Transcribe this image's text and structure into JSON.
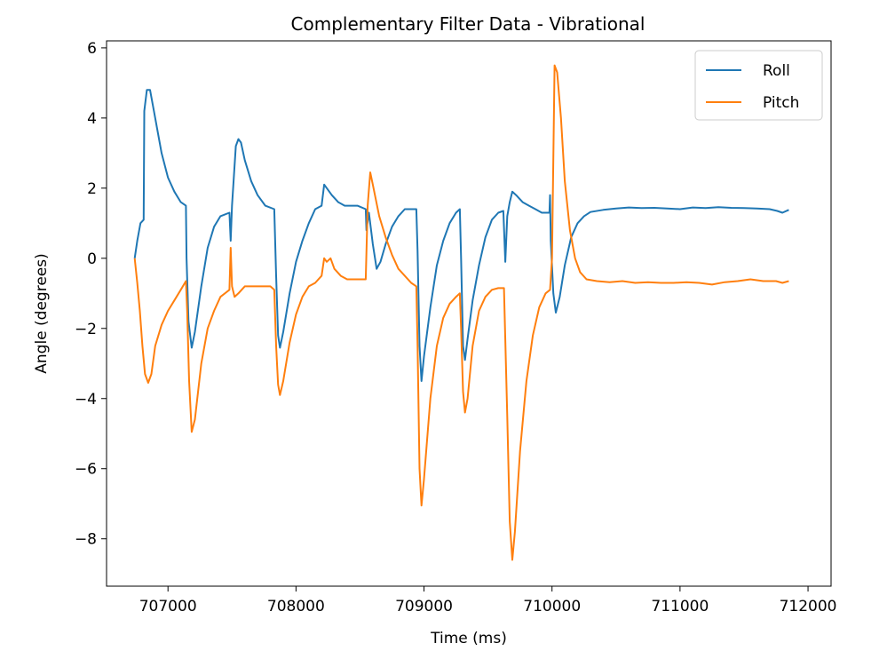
{
  "chart_data": {
    "type": "line",
    "title": "Complementary Filter Data - Vibrational",
    "xlabel": "Time (ms)",
    "ylabel": "Angle (degrees)",
    "xlim": [
      706520,
      712180
    ],
    "ylim": [
      -9.35,
      6.2
    ],
    "x_ticks": [
      707000,
      708000,
      709000,
      710000,
      711000,
      712000
    ],
    "x_tick_labels": [
      "707000",
      "708000",
      "709000",
      "710000",
      "711000",
      "712000"
    ],
    "y_ticks": [
      6,
      4,
      2,
      0,
      -2,
      -4,
      -6,
      -8
    ],
    "y_tick_labels": [
      "6",
      "4",
      "2",
      "0",
      "−2",
      "−4",
      "−6",
      "−8"
    ],
    "grid": false,
    "legend": "top-right",
    "series": [
      {
        "name": "Roll",
        "color": "#1f77b4",
        "points": [
          [
            706740,
            0.0
          ],
          [
            706760,
            0.5
          ],
          [
            706785,
            1.0
          ],
          [
            706810,
            1.1
          ],
          [
            706815,
            4.2
          ],
          [
            706835,
            4.8
          ],
          [
            706860,
            4.8
          ],
          [
            706900,
            4.0
          ],
          [
            706950,
            3.0
          ],
          [
            707000,
            2.3
          ],
          [
            707050,
            1.9
          ],
          [
            707100,
            1.6
          ],
          [
            707140,
            1.5
          ],
          [
            707145,
            0.0
          ],
          [
            707160,
            -1.8
          ],
          [
            707185,
            -2.55
          ],
          [
            707210,
            -2.1
          ],
          [
            707260,
            -0.8
          ],
          [
            707310,
            0.3
          ],
          [
            707360,
            0.9
          ],
          [
            707410,
            1.2
          ],
          [
            707480,
            1.3
          ],
          [
            707490,
            0.5
          ],
          [
            707500,
            1.5
          ],
          [
            707530,
            3.2
          ],
          [
            707550,
            3.4
          ],
          [
            707570,
            3.3
          ],
          [
            707600,
            2.8
          ],
          [
            707650,
            2.2
          ],
          [
            707700,
            1.8
          ],
          [
            707760,
            1.5
          ],
          [
            707830,
            1.4
          ],
          [
            707845,
            -0.5
          ],
          [
            707860,
            -2.2
          ],
          [
            707875,
            -2.55
          ],
          [
            707900,
            -2.1
          ],
          [
            707950,
            -1.0
          ],
          [
            708000,
            -0.1
          ],
          [
            708050,
            0.5
          ],
          [
            708100,
            1.0
          ],
          [
            708150,
            1.4
          ],
          [
            708200,
            1.5
          ],
          [
            708220,
            2.1
          ],
          [
            708240,
            2.0
          ],
          [
            708280,
            1.8
          ],
          [
            708330,
            1.6
          ],
          [
            708380,
            1.5
          ],
          [
            708430,
            1.5
          ],
          [
            708480,
            1.5
          ],
          [
            708545,
            1.4
          ],
          [
            708550,
            0.8
          ],
          [
            708570,
            1.3
          ],
          [
            708600,
            0.4
          ],
          [
            708630,
            -0.3
          ],
          [
            708660,
            -0.1
          ],
          [
            708700,
            0.4
          ],
          [
            708750,
            0.9
          ],
          [
            708800,
            1.2
          ],
          [
            708850,
            1.4
          ],
          [
            708900,
            1.4
          ],
          [
            708940,
            1.4
          ],
          [
            708950,
            0.2
          ],
          [
            708965,
            -2.5
          ],
          [
            708980,
            -3.5
          ],
          [
            709000,
            -2.8
          ],
          [
            709050,
            -1.4
          ],
          [
            709100,
            -0.2
          ],
          [
            709150,
            0.5
          ],
          [
            709200,
            1.0
          ],
          [
            709250,
            1.3
          ],
          [
            709280,
            1.4
          ],
          [
            709290,
            0.0
          ],
          [
            709305,
            -2.5
          ],
          [
            709320,
            -2.9
          ],
          [
            709340,
            -2.3
          ],
          [
            709380,
            -1.2
          ],
          [
            709430,
            -0.2
          ],
          [
            709480,
            0.6
          ],
          [
            709530,
            1.1
          ],
          [
            709580,
            1.3
          ],
          [
            709620,
            1.35
          ],
          [
            709635,
            -0.1
          ],
          [
            709650,
            1.2
          ],
          [
            709670,
            1.6
          ],
          [
            709690,
            1.9
          ],
          [
            709720,
            1.8
          ],
          [
            709770,
            1.6
          ],
          [
            709820,
            1.5
          ],
          [
            709870,
            1.4
          ],
          [
            709920,
            1.3
          ],
          [
            709980,
            1.3
          ],
          [
            709985,
            1.8
          ],
          [
            709990,
            0.5
          ],
          [
            710010,
            -1.0
          ],
          [
            710030,
            -1.55
          ],
          [
            710060,
            -1.1
          ],
          [
            710100,
            -0.2
          ],
          [
            710150,
            0.6
          ],
          [
            710200,
            1.0
          ],
          [
            710250,
            1.2
          ],
          [
            710300,
            1.32
          ],
          [
            710400,
            1.38
          ],
          [
            710500,
            1.42
          ],
          [
            710600,
            1.45
          ],
          [
            710700,
            1.43
          ],
          [
            710800,
            1.44
          ],
          [
            710900,
            1.42
          ],
          [
            711000,
            1.4
          ],
          [
            711100,
            1.45
          ],
          [
            711200,
            1.43
          ],
          [
            711300,
            1.46
          ],
          [
            711400,
            1.44
          ],
          [
            711500,
            1.43
          ],
          [
            711600,
            1.42
          ],
          [
            711700,
            1.4
          ],
          [
            711760,
            1.35
          ],
          [
            711800,
            1.3
          ],
          [
            711850,
            1.38
          ]
        ]
      },
      {
        "name": "Pitch",
        "color": "#ff7f0e",
        "points": [
          [
            706740,
            0.0
          ],
          [
            706760,
            -0.7
          ],
          [
            706780,
            -1.5
          ],
          [
            706800,
            -2.5
          ],
          [
            706820,
            -3.3
          ],
          [
            706845,
            -3.55
          ],
          [
            706870,
            -3.3
          ],
          [
            706900,
            -2.5
          ],
          [
            706950,
            -1.9
          ],
          [
            707000,
            -1.5
          ],
          [
            707050,
            -1.2
          ],
          [
            707100,
            -0.9
          ],
          [
            707140,
            -0.65
          ],
          [
            707150,
            -1.5
          ],
          [
            707165,
            -3.5
          ],
          [
            707185,
            -4.95
          ],
          [
            707210,
            -4.6
          ],
          [
            707260,
            -3.0
          ],
          [
            707310,
            -2.0
          ],
          [
            707360,
            -1.5
          ],
          [
            707410,
            -1.1
          ],
          [
            707480,
            -0.9
          ],
          [
            707490,
            0.3
          ],
          [
            707500,
            -0.8
          ],
          [
            707520,
            -1.1
          ],
          [
            707550,
            -1.0
          ],
          [
            707600,
            -0.8
          ],
          [
            707700,
            -0.8
          ],
          [
            707800,
            -0.8
          ],
          [
            707830,
            -0.9
          ],
          [
            707845,
            -2.5
          ],
          [
            707860,
            -3.6
          ],
          [
            707875,
            -3.9
          ],
          [
            707900,
            -3.5
          ],
          [
            707950,
            -2.4
          ],
          [
            708000,
            -1.6
          ],
          [
            708050,
            -1.1
          ],
          [
            708100,
            -0.8
          ],
          [
            708150,
            -0.7
          ],
          [
            708200,
            -0.5
          ],
          [
            708220,
            0.0
          ],
          [
            708240,
            -0.1
          ],
          [
            708270,
            0.0
          ],
          [
            708300,
            -0.3
          ],
          [
            708350,
            -0.5
          ],
          [
            708400,
            -0.6
          ],
          [
            708450,
            -0.6
          ],
          [
            708545,
            -0.6
          ],
          [
            708560,
            1.5
          ],
          [
            708580,
            2.45
          ],
          [
            708600,
            2.1
          ],
          [
            708650,
            1.2
          ],
          [
            708700,
            0.6
          ],
          [
            708750,
            0.1
          ],
          [
            708800,
            -0.3
          ],
          [
            708850,
            -0.5
          ],
          [
            708900,
            -0.7
          ],
          [
            708940,
            -0.8
          ],
          [
            708950,
            -2.5
          ],
          [
            708965,
            -6.0
          ],
          [
            708980,
            -7.05
          ],
          [
            709000,
            -6.3
          ],
          [
            709050,
            -4.0
          ],
          [
            709100,
            -2.5
          ],
          [
            709150,
            -1.7
          ],
          [
            709200,
            -1.3
          ],
          [
            709250,
            -1.1
          ],
          [
            709280,
            -1.0
          ],
          [
            709290,
            -2.0
          ],
          [
            709305,
            -3.8
          ],
          [
            709320,
            -4.4
          ],
          [
            709340,
            -4.0
          ],
          [
            709380,
            -2.5
          ],
          [
            709430,
            -1.5
          ],
          [
            709480,
            -1.1
          ],
          [
            709530,
            -0.9
          ],
          [
            709580,
            -0.85
          ],
          [
            709625,
            -0.85
          ],
          [
            709650,
            -4.5
          ],
          [
            709670,
            -7.5
          ],
          [
            709690,
            -8.6
          ],
          [
            709710,
            -7.8
          ],
          [
            709750,
            -5.5
          ],
          [
            709800,
            -3.5
          ],
          [
            709850,
            -2.2
          ],
          [
            709900,
            -1.4
          ],
          [
            709950,
            -1.0
          ],
          [
            709985,
            -0.9
          ],
          [
            710000,
            0.0
          ],
          [
            710020,
            5.5
          ],
          [
            710040,
            5.3
          ],
          [
            710070,
            4.0
          ],
          [
            710100,
            2.2
          ],
          [
            710140,
            0.8
          ],
          [
            710180,
            0.0
          ],
          [
            710220,
            -0.4
          ],
          [
            710270,
            -0.6
          ],
          [
            710350,
            -0.65
          ],
          [
            710450,
            -0.68
          ],
          [
            710550,
            -0.65
          ],
          [
            710650,
            -0.7
          ],
          [
            710750,
            -0.68
          ],
          [
            710850,
            -0.7
          ],
          [
            710950,
            -0.7
          ],
          [
            711050,
            -0.68
          ],
          [
            711150,
            -0.7
          ],
          [
            711250,
            -0.75
          ],
          [
            711350,
            -0.68
          ],
          [
            711450,
            -0.65
          ],
          [
            711550,
            -0.6
          ],
          [
            711650,
            -0.65
          ],
          [
            711750,
            -0.65
          ],
          [
            711800,
            -0.7
          ],
          [
            711850,
            -0.65
          ]
        ]
      }
    ]
  }
}
